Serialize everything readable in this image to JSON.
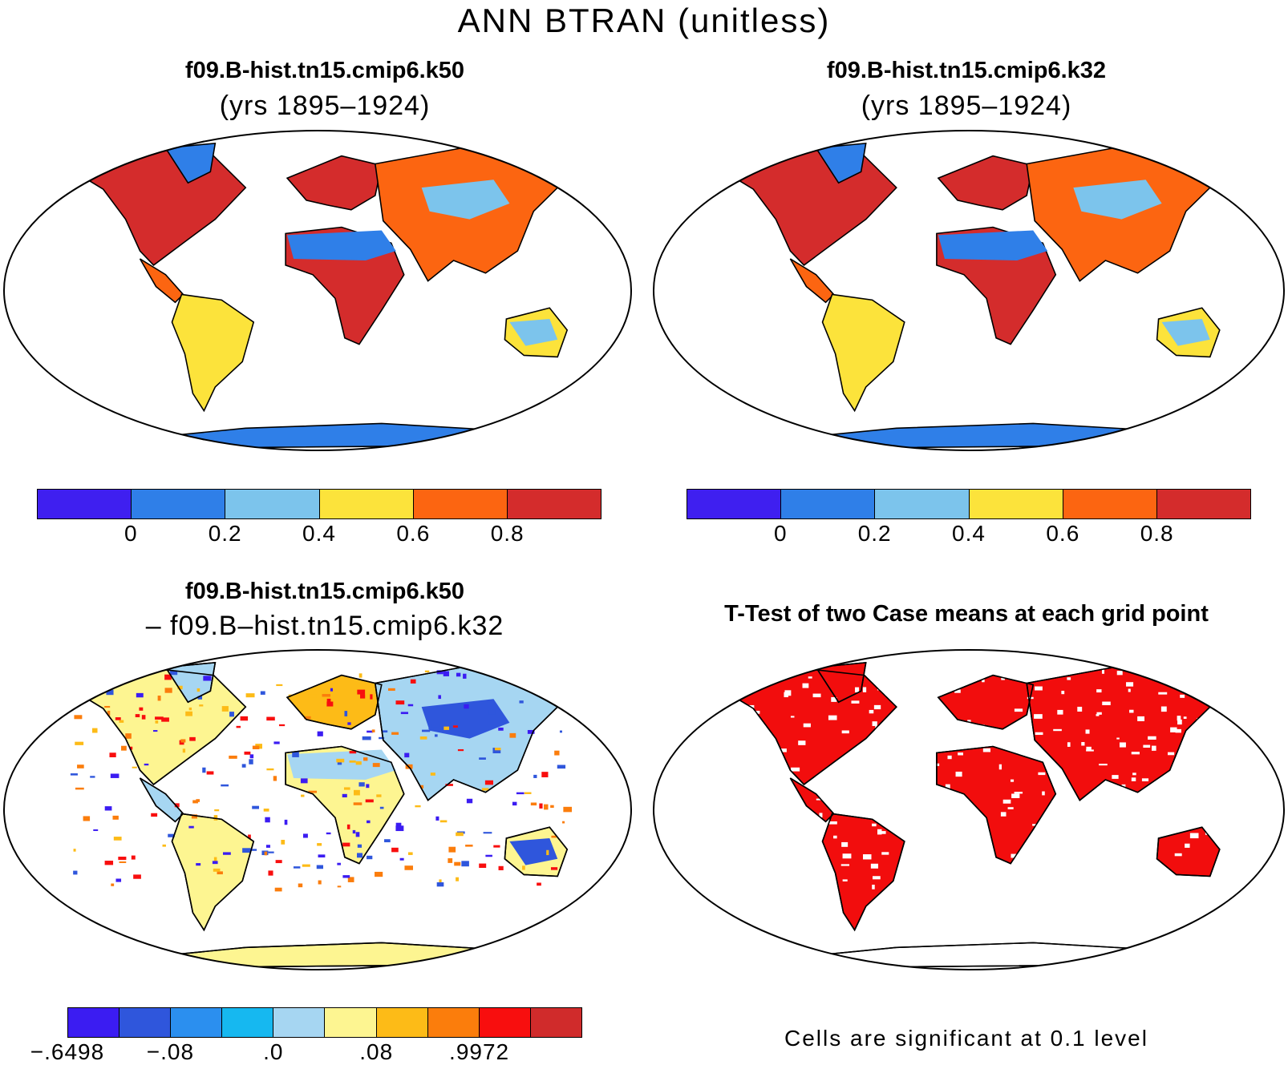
{
  "title": "ANN BTRAN (unitless)",
  "panels": [
    {
      "id": "k50",
      "title": "f09.B-hist.tn15.cmip6.k50",
      "subtitle": "(yrs 1895–1924)"
    },
    {
      "id": "k32",
      "title": "f09.B-hist.tn15.cmip6.k32",
      "subtitle": "(yrs 1895–1924)"
    },
    {
      "id": "diff",
      "title": "f09.B-hist.tn15.cmip6.k50",
      "subtitle": "– f09.B–hist.tn15.cmip6.k32"
    },
    {
      "id": "ttest",
      "title": "T-Test of two Case means at each grid point",
      "note": "Cells are significant at 0.1 level"
    }
  ],
  "colorbars": {
    "abs": {
      "colors": [
        "#3f1ff0",
        "#2f7fe8",
        "#7cc4ec",
        "#fce33b",
        "#fc6511",
        "#d42c2c"
      ],
      "labels": [
        "0",
        "0.2",
        "0.4",
        "0.6",
        "0.8"
      ]
    },
    "diff": {
      "colors": [
        "#3b1cf2",
        "#2f56dc",
        "#2b8fef",
        "#16b8f0",
        "#a6d6f2",
        "#fdf591",
        "#fdbb17",
        "#fb7d0c",
        "#f80e0e",
        "#d02b2b"
      ],
      "labels": [
        "−.6498",
        "−.08",
        ".0",
        ".08",
        ".9972"
      ]
    }
  },
  "map_colors": {
    "ocean": "#ffffff",
    "significant": "#f20d0d",
    "antarctica_abs": "#2f7fe8",
    "antarctica_diff": "#fdf591"
  }
}
